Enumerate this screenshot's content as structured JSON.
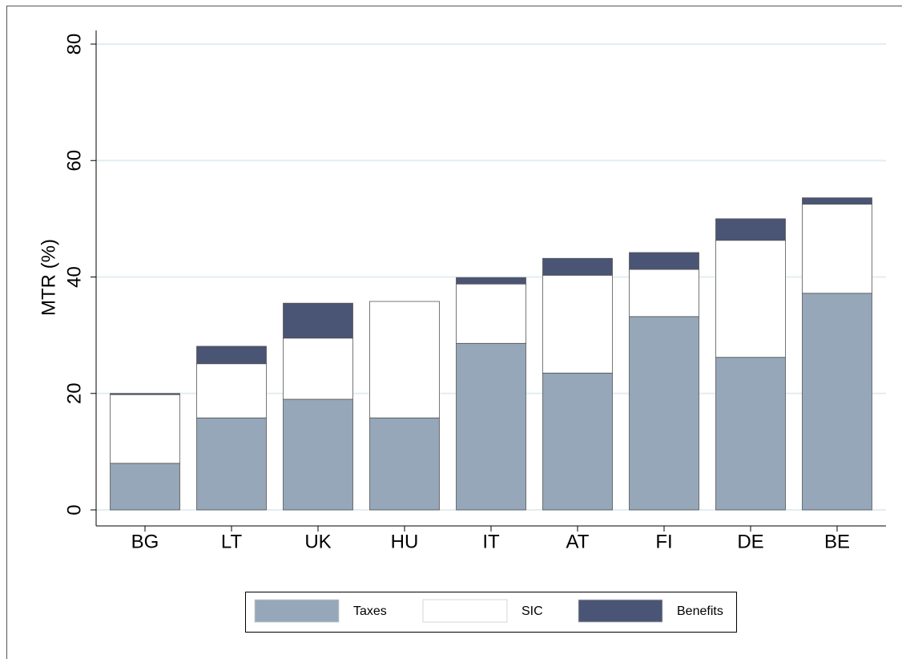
{
  "chart_data": {
    "type": "stacked_bar",
    "y_label": "MTR (%)",
    "categories": [
      "BG",
      "LT",
      "UK",
      "HU",
      "IT",
      "AT",
      "FI",
      "DE",
      "BE"
    ],
    "series": [
      {
        "name": "Taxes",
        "color": "#95a7b8",
        "values": [
          8.0,
          15.8,
          19.0,
          15.8,
          28.6,
          23.5,
          33.2,
          26.2,
          37.2
        ]
      },
      {
        "name": "SIC",
        "color": "#ffffff",
        "values": [
          11.8,
          9.3,
          10.5,
          20.0,
          10.2,
          16.8,
          8.1,
          20.1,
          15.3
        ]
      },
      {
        "name": "Benefits",
        "color": "#4a5474",
        "values": [
          0.2,
          3.0,
          6.0,
          0.0,
          1.1,
          2.9,
          2.9,
          3.7,
          1.1
        ]
      }
    ],
    "ylim": [
      0,
      80
    ],
    "yticks": [
      0,
      20,
      40,
      60,
      80
    ],
    "grid": true,
    "legend": "bottom"
  }
}
